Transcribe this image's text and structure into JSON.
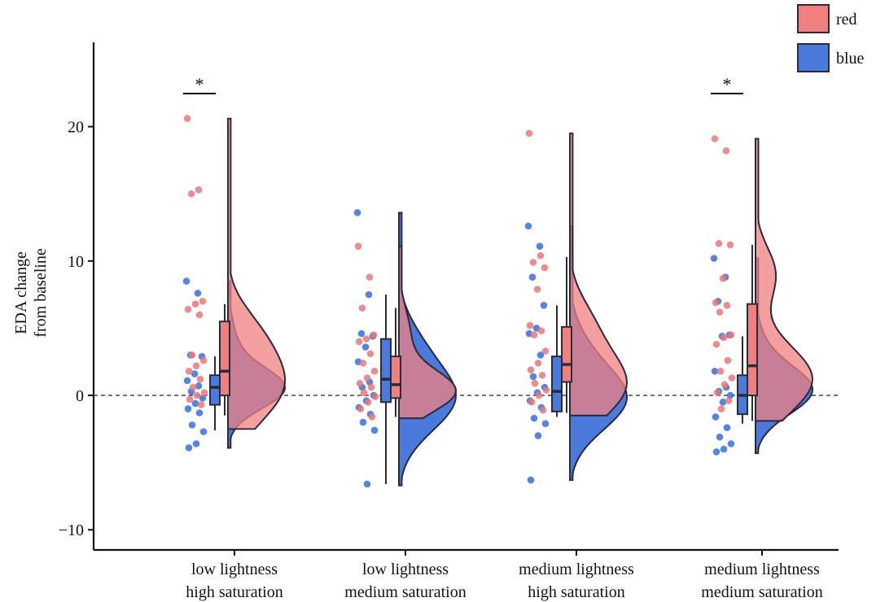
{
  "chart_data": {
    "type": "raincloud",
    "title": "",
    "ylabel_lines": [
      "EDA change",
      "from baseline"
    ],
    "ylim": [
      -11.5,
      27
    ],
    "yticks": [
      -10,
      0,
      10,
      20
    ],
    "ytick_labels": [
      "−10",
      "0",
      "10",
      "20"
    ],
    "reference_line": 0,
    "categories": [
      {
        "lines": [
          "low lightness",
          "high saturation"
        ],
        "significant": true,
        "sig_label": "*"
      },
      {
        "lines": [
          "low lightness",
          "medium saturation"
        ],
        "significant": false,
        "sig_label": ""
      },
      {
        "lines": [
          "medium lightness",
          "high saturation"
        ],
        "significant": false,
        "sig_label": ""
      },
      {
        "lines": [
          "medium lightness",
          "medium saturation"
        ],
        "significant": true,
        "sig_label": "*"
      }
    ],
    "legend": {
      "position": "top-right",
      "entries": [
        "red",
        "blue"
      ]
    },
    "colors": {
      "red": "#f08080",
      "blue": "#4a7bdc",
      "red_point": "#e8787c",
      "blue_point": "#3a6fd8",
      "outline": "#2a2a3a",
      "overlap": "#a8506e"
    },
    "series": [
      {
        "name": "red",
        "boxes": [
          {
            "min": -1.5,
            "q1": 0.0,
            "median": 1.8,
            "q3": 5.5,
            "max": 6.8
          },
          {
            "min": -1.6,
            "q1": -0.2,
            "median": 0.8,
            "q3": 2.9,
            "max": 6.5
          },
          {
            "min": -1.3,
            "q1": 1.0,
            "median": 2.3,
            "q3": 5.1,
            "max": 10.3
          },
          {
            "min": -1.9,
            "q1": 0.0,
            "median": 2.2,
            "q3": 6.8,
            "max": 11.2
          }
        ],
        "density": [
          {
            "lo": -2.5,
            "hi": 20.6,
            "peak": 1.0,
            "peak_y": 0.8,
            "tail": 0.05,
            "bump_y": 5.0,
            "bump": 0.3
          },
          {
            "lo": -1.7,
            "hi": 11.1,
            "peak": 1.0,
            "peak_y": 0.3,
            "tail": 0.05,
            "bump_y": 4.5,
            "bump": 0.2
          },
          {
            "lo": -1.5,
            "hi": 19.5,
            "peak": 1.0,
            "peak_y": 0.8,
            "tail": 0.05,
            "bump_y": 5.5,
            "bump": 0.3
          },
          {
            "lo": -1.9,
            "hi": 19.1,
            "peak": 1.0,
            "peak_y": 1.2,
            "tail": 0.05,
            "bump_y": 9.0,
            "bump": 0.35
          }
        ],
        "points": [
          [
            20.6,
            15.3,
            15.0,
            7.0,
            6.8,
            6.4,
            6.0,
            3.0,
            2.6,
            2.2,
            1.8,
            1.2,
            0.6,
            0.2,
            0.0,
            -0.3,
            -0.7
          ],
          [
            11.1,
            8.8,
            6.5,
            4.5,
            4.2,
            4.0,
            3.1,
            2.4,
            1.8,
            1.3,
            0.9,
            0.6,
            0.2,
            -0.1,
            -0.5,
            -1.0,
            -1.6
          ],
          [
            19.5,
            10.4,
            9.9,
            9.5,
            7.9,
            5.2,
            4.8,
            4.5,
            3.3,
            2.4,
            1.9,
            1.5,
            0.9,
            0.4,
            0.0,
            -0.5,
            -1.1
          ],
          [
            19.1,
            18.2,
            11.3,
            11.2,
            8.7,
            6.9,
            6.7,
            6.2,
            4.5,
            4.3,
            3.8,
            2.6,
            1.8,
            1.3,
            0.8,
            0.2,
            -0.4,
            -1.0
          ]
        ]
      },
      {
        "name": "blue",
        "boxes": [
          {
            "min": -2.6,
            "q1": -0.7,
            "median": 0.6,
            "q3": 1.5,
            "max": 2.9
          },
          {
            "min": -6.6,
            "q1": -0.5,
            "median": 1.2,
            "q3": 4.2,
            "max": 7.5
          },
          {
            "min": -1.6,
            "q1": -1.2,
            "median": 0.3,
            "q3": 2.9,
            "max": 6.7
          },
          {
            "min": -2.1,
            "q1": -1.4,
            "median": 0.0,
            "q3": 1.5,
            "max": 4.4
          }
        ],
        "density": [
          {
            "lo": -3.9,
            "hi": 8.5,
            "peak": 1.0,
            "peak_y": 0.5,
            "tail": 0.05,
            "bump_y": 3.5,
            "bump": 0.15
          },
          {
            "lo": -6.7,
            "hi": 13.6,
            "peak": 1.0,
            "peak_y": -0.2,
            "tail": 0.05,
            "bump_y": 4.0,
            "bump": 0.25
          },
          {
            "lo": -6.3,
            "hi": 12.6,
            "peak": 1.0,
            "peak_y": -0.3,
            "tail": 0.05,
            "bump_y": 3.5,
            "bump": 0.2
          },
          {
            "lo": -4.3,
            "hi": 10.2,
            "peak": 1.0,
            "peak_y": 0.3,
            "tail": 0.05,
            "bump_y": 3.0,
            "bump": 0.15
          }
        ],
        "points": [
          [
            8.5,
            7.6,
            3.0,
            2.9,
            1.6,
            1.1,
            0.7,
            0.3,
            -0.2,
            -0.6,
            -1.0,
            -1.3,
            -2.2,
            -2.7,
            -3.6,
            -3.9
          ],
          [
            13.6,
            7.5,
            4.6,
            4.4,
            3.6,
            2.5,
            1.0,
            0.6,
            0.0,
            -0.4,
            -0.9,
            -1.4,
            -2.0,
            -2.6,
            -6.6
          ],
          [
            12.6,
            11.1,
            8.8,
            6.7,
            5.0,
            4.6,
            3.0,
            1.4,
            0.6,
            0.2,
            -0.4,
            -0.9,
            -1.7,
            -2.1,
            -3.0,
            -6.3
          ],
          [
            10.2,
            8.8,
            7.0,
            4.5,
            4.4,
            1.8,
            0.6,
            0.3,
            0.0,
            -0.5,
            -1.6,
            -2.4,
            -3.1,
            -3.6,
            -4.0,
            -4.2
          ]
        ]
      }
    ]
  }
}
